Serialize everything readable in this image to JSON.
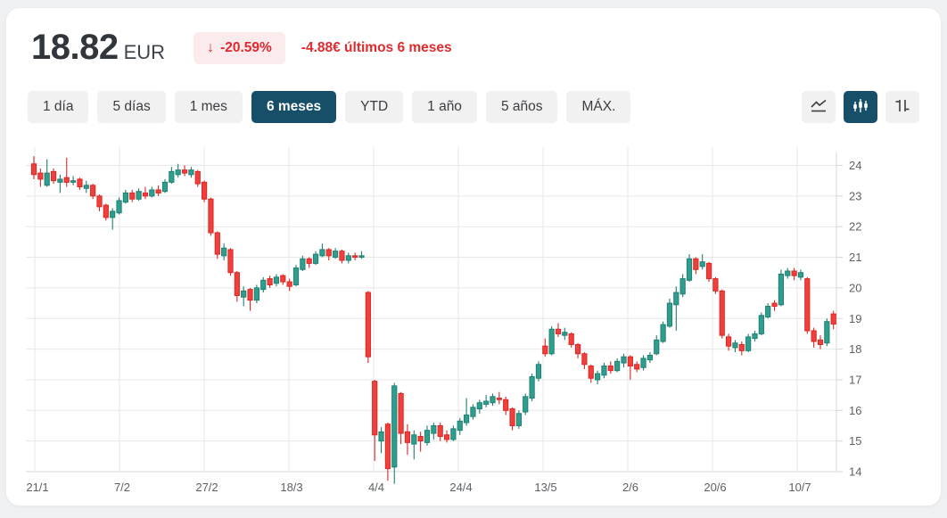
{
  "header": {
    "price": "18.82",
    "currency": "EUR",
    "change_arrow_icon": "↓",
    "change_percent": "-20.59%",
    "change_summary": "-4.88€ últimos 6 meses"
  },
  "toolbar": {
    "ranges": [
      {
        "label": "1 día",
        "selected": false
      },
      {
        "label": "5 días",
        "selected": false
      },
      {
        "label": "1 mes",
        "selected": false
      },
      {
        "label": "6 meses",
        "selected": true
      },
      {
        "label": "YTD",
        "selected": false
      },
      {
        "label": "1 año",
        "selected": false
      },
      {
        "label": "5 años",
        "selected": false
      },
      {
        "label": "MÁX.",
        "selected": false
      }
    ],
    "chart_types": [
      {
        "icon": "line-chart-icon",
        "selected": false
      },
      {
        "icon": "candlestick-icon",
        "selected": true
      },
      {
        "icon": "ohlc-bars-icon",
        "selected": false
      }
    ]
  },
  "colors": {
    "accent_selected": "#174f68",
    "negative_red": "#e12a2e",
    "badge_bg": "#fcebec",
    "candle_up_fill": "#2f9e8f",
    "candle_up_stroke": "#1f8070",
    "candle_down_fill": "#ef403d",
    "candle_down_stroke": "#dc2724",
    "gridline": "#e6e7e9",
    "axis_line": "#d5d7d9",
    "tick_text": "#5d6165"
  },
  "chart_data": {
    "type": "candlestick",
    "title": "",
    "xlabel": "",
    "ylabel": "",
    "x_labels": [
      "21/1",
      "7/2",
      "27/2",
      "18/3",
      "4/4",
      "24/4",
      "13/5",
      "2/6",
      "20/6",
      "10/7"
    ],
    "y_ticks": [
      24,
      23,
      22,
      21,
      20,
      19,
      18,
      17,
      16,
      15,
      14
    ],
    "ylim": [
      13.6,
      24.5
    ],
    "legend": "none",
    "grid": true,
    "y_axis_position": "right",
    "candles_ohlc": [
      [
        24.05,
        24.3,
        23.55,
        23.7
      ],
      [
        23.75,
        23.9,
        23.3,
        23.55
      ],
      [
        23.35,
        24.2,
        23.3,
        23.75
      ],
      [
        23.8,
        23.9,
        23.4,
        23.5
      ],
      [
        23.45,
        23.7,
        23.1,
        23.55
      ],
      [
        23.6,
        24.25,
        23.3,
        23.45
      ],
      [
        23.45,
        23.65,
        23.35,
        23.5
      ],
      [
        23.55,
        23.6,
        23.2,
        23.3
      ],
      [
        23.25,
        23.5,
        23.1,
        23.35
      ],
      [
        23.35,
        23.4,
        22.9,
        23.0
      ],
      [
        23.0,
        23.05,
        22.5,
        22.65
      ],
      [
        22.7,
        22.75,
        22.2,
        22.3
      ],
      [
        22.3,
        22.6,
        21.9,
        22.5
      ],
      [
        22.45,
        22.95,
        22.4,
        22.85
      ],
      [
        22.8,
        23.2,
        22.75,
        23.1
      ],
      [
        23.1,
        23.2,
        22.8,
        22.9
      ],
      [
        22.9,
        23.25,
        22.85,
        23.15
      ],
      [
        23.1,
        23.3,
        22.9,
        23.0
      ],
      [
        23.0,
        23.3,
        22.95,
        23.2
      ],
      [
        23.2,
        23.35,
        23.0,
        23.1
      ],
      [
        23.15,
        23.55,
        23.1,
        23.45
      ],
      [
        23.45,
        23.95,
        23.4,
        23.8
      ],
      [
        23.7,
        24.05,
        23.6,
        23.85
      ],
      [
        23.85,
        24.0,
        23.65,
        23.75
      ],
      [
        23.7,
        23.95,
        23.6,
        23.85
      ],
      [
        23.8,
        23.85,
        23.3,
        23.4
      ],
      [
        23.45,
        23.5,
        22.8,
        22.9
      ],
      [
        22.9,
        22.95,
        21.7,
        21.8
      ],
      [
        21.8,
        21.85,
        20.95,
        21.1
      ],
      [
        21.05,
        21.45,
        20.9,
        21.3
      ],
      [
        21.25,
        21.3,
        20.4,
        20.5
      ],
      [
        20.5,
        20.55,
        19.55,
        19.75
      ],
      [
        19.7,
        20.05,
        19.4,
        19.9
      ],
      [
        19.95,
        20.0,
        19.25,
        19.6
      ],
      [
        19.6,
        20.1,
        19.5,
        20.0
      ],
      [
        19.95,
        20.35,
        19.85,
        20.25
      ],
      [
        20.3,
        20.4,
        20.0,
        20.1
      ],
      [
        20.15,
        20.45,
        20.05,
        20.35
      ],
      [
        20.4,
        20.45,
        20.1,
        20.2
      ],
      [
        20.2,
        20.3,
        19.9,
        20.05
      ],
      [
        20.1,
        20.75,
        20.05,
        20.65
      ],
      [
        20.6,
        21.05,
        20.55,
        20.95
      ],
      [
        20.95,
        21.0,
        20.65,
        20.8
      ],
      [
        20.8,
        21.2,
        20.75,
        21.1
      ],
      [
        21.05,
        21.45,
        21.0,
        21.25
      ],
      [
        21.25,
        21.3,
        20.9,
        21.05
      ],
      [
        21.0,
        21.3,
        20.95,
        21.2
      ],
      [
        21.2,
        21.25,
        20.8,
        20.9
      ],
      [
        20.9,
        21.15,
        20.8,
        21.05
      ],
      [
        21.05,
        21.15,
        20.9,
        21.0
      ],
      [
        21.0,
        21.2,
        20.95,
        21.05
      ],
      [
        19.85,
        19.9,
        17.55,
        17.75
      ],
      [
        16.95,
        17.0,
        14.35,
        15.2
      ],
      [
        15.0,
        15.45,
        14.6,
        15.3
      ],
      [
        15.55,
        15.6,
        13.7,
        14.1
      ],
      [
        14.15,
        16.9,
        13.6,
        16.8
      ],
      [
        16.55,
        16.6,
        14.9,
        15.25
      ],
      [
        15.3,
        15.55,
        14.55,
        14.95
      ],
      [
        14.9,
        15.35,
        14.4,
        15.2
      ],
      [
        15.15,
        15.3,
        14.65,
        15.0
      ],
      [
        14.95,
        15.5,
        14.85,
        15.35
      ],
      [
        15.25,
        15.6,
        15.05,
        15.5
      ],
      [
        15.5,
        15.6,
        15.0,
        15.15
      ],
      [
        15.2,
        15.35,
        14.95,
        15.05
      ],
      [
        15.05,
        15.5,
        15.0,
        15.4
      ],
      [
        15.35,
        15.75,
        15.2,
        15.65
      ],
      [
        15.6,
        16.4,
        15.5,
        15.85
      ],
      [
        15.8,
        16.2,
        15.7,
        16.1
      ],
      [
        16.05,
        16.35,
        15.9,
        16.25
      ],
      [
        16.2,
        16.5,
        16.1,
        16.3
      ],
      [
        16.25,
        16.55,
        16.15,
        16.45
      ],
      [
        16.4,
        16.6,
        16.2,
        16.35
      ],
      [
        16.35,
        16.45,
        15.85,
        16.0
      ],
      [
        16.05,
        16.1,
        15.35,
        15.5
      ],
      [
        15.5,
        16.0,
        15.4,
        15.9
      ],
      [
        15.95,
        16.55,
        15.85,
        16.45
      ],
      [
        16.4,
        17.2,
        16.3,
        17.1
      ],
      [
        17.05,
        17.6,
        16.95,
        17.5
      ],
      [
        18.1,
        18.35,
        17.75,
        17.85
      ],
      [
        17.85,
        18.75,
        17.8,
        18.65
      ],
      [
        18.65,
        18.85,
        18.4,
        18.5
      ],
      [
        18.45,
        18.7,
        18.3,
        18.55
      ],
      [
        18.5,
        18.55,
        18.05,
        18.15
      ],
      [
        18.15,
        18.2,
        17.7,
        17.85
      ],
      [
        17.85,
        17.9,
        17.35,
        17.5
      ],
      [
        17.45,
        17.5,
        16.9,
        17.05
      ],
      [
        17.0,
        17.3,
        16.85,
        17.2
      ],
      [
        17.15,
        17.55,
        17.05,
        17.45
      ],
      [
        17.45,
        17.6,
        17.2,
        17.3
      ],
      [
        17.3,
        17.7,
        17.25,
        17.6
      ],
      [
        17.55,
        17.85,
        17.4,
        17.75
      ],
      [
        17.75,
        17.8,
        17.0,
        17.45
      ],
      [
        17.5,
        17.6,
        17.25,
        17.35
      ],
      [
        17.4,
        17.8,
        17.3,
        17.7
      ],
      [
        17.65,
        17.9,
        17.55,
        17.8
      ],
      [
        17.85,
        18.45,
        17.8,
        18.3
      ],
      [
        18.25,
        18.9,
        18.2,
        18.8
      ],
      [
        18.75,
        19.65,
        18.7,
        19.5
      ],
      [
        19.45,
        20.05,
        18.6,
        19.85
      ],
      [
        19.8,
        20.45,
        19.7,
        20.3
      ],
      [
        20.25,
        21.1,
        20.2,
        20.95
      ],
      [
        20.95,
        21.0,
        20.45,
        20.6
      ],
      [
        20.7,
        21.1,
        20.6,
        20.85
      ],
      [
        20.8,
        20.85,
        20.2,
        20.3
      ],
      [
        20.3,
        20.35,
        19.8,
        19.9
      ],
      [
        19.9,
        19.95,
        18.35,
        18.45
      ],
      [
        18.4,
        18.5,
        17.95,
        18.1
      ],
      [
        18.05,
        18.3,
        17.9,
        18.2
      ],
      [
        18.15,
        18.25,
        17.8,
        17.95
      ],
      [
        17.95,
        18.5,
        17.9,
        18.4
      ],
      [
        18.35,
        18.6,
        18.25,
        18.5
      ],
      [
        18.5,
        19.2,
        18.45,
        19.1
      ],
      [
        19.05,
        19.5,
        19.0,
        19.4
      ],
      [
        19.5,
        19.6,
        19.25,
        19.4
      ],
      [
        19.45,
        20.6,
        19.4,
        20.45
      ],
      [
        20.4,
        20.65,
        20.3,
        20.55
      ],
      [
        20.55,
        20.65,
        20.25,
        20.4
      ],
      [
        20.35,
        20.6,
        20.25,
        20.5
      ],
      [
        20.3,
        20.35,
        18.5,
        18.6
      ],
      [
        18.6,
        18.7,
        18.05,
        18.25
      ],
      [
        18.3,
        18.45,
        18.0,
        18.15
      ],
      [
        18.2,
        19.0,
        18.1,
        18.9
      ],
      [
        19.15,
        19.25,
        18.65,
        18.82
      ]
    ]
  }
}
